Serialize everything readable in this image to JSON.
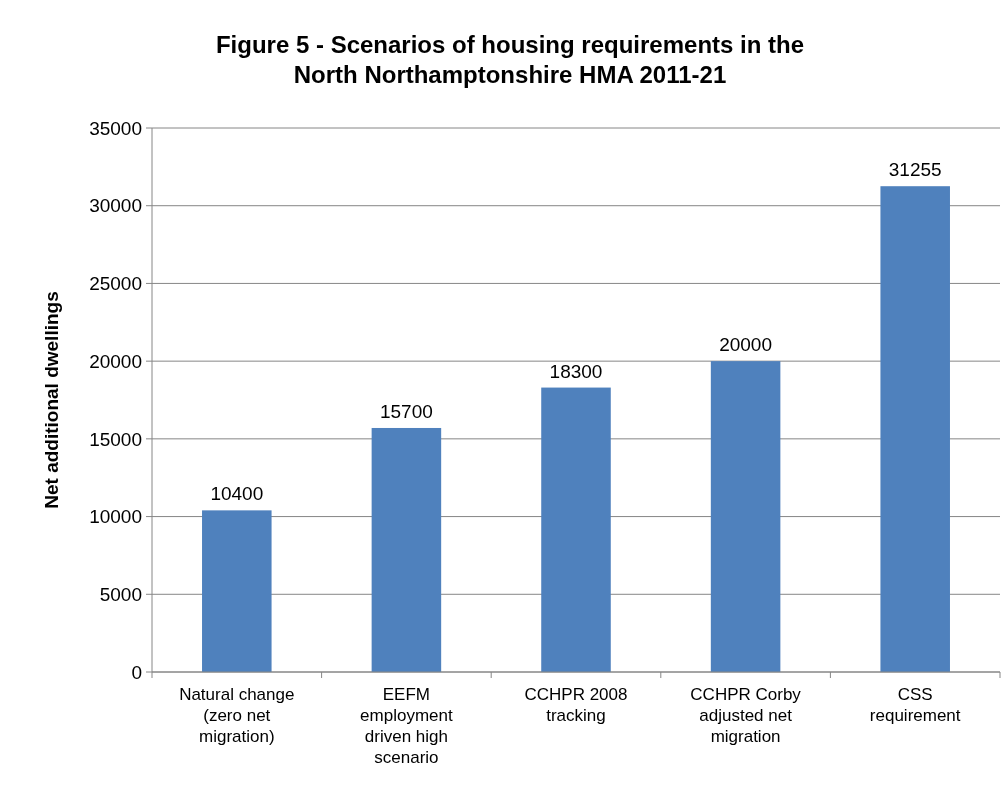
{
  "chart_data": {
    "type": "bar",
    "title": "Figure 5 - Scenarios of housing requirements in the North Northamptonshire HMA 2011-21",
    "ylabel": "Net additional dwellings",
    "categories": [
      "Natural change (zero net migration)",
      "EEFM employment driven high scenario",
      "CCHPR 2008 tracking",
      "CCHPR Corby adjusted net migration",
      "CSS requirement"
    ],
    "values": [
      10400,
      15700,
      18300,
      20000,
      31255
    ],
    "color": "#4f81bd",
    "ylim": [
      0,
      35000
    ],
    "yticks": [
      0,
      5000,
      10000,
      15000,
      20000,
      25000,
      30000,
      35000
    ],
    "grid": "y",
    "data_labels": true
  }
}
